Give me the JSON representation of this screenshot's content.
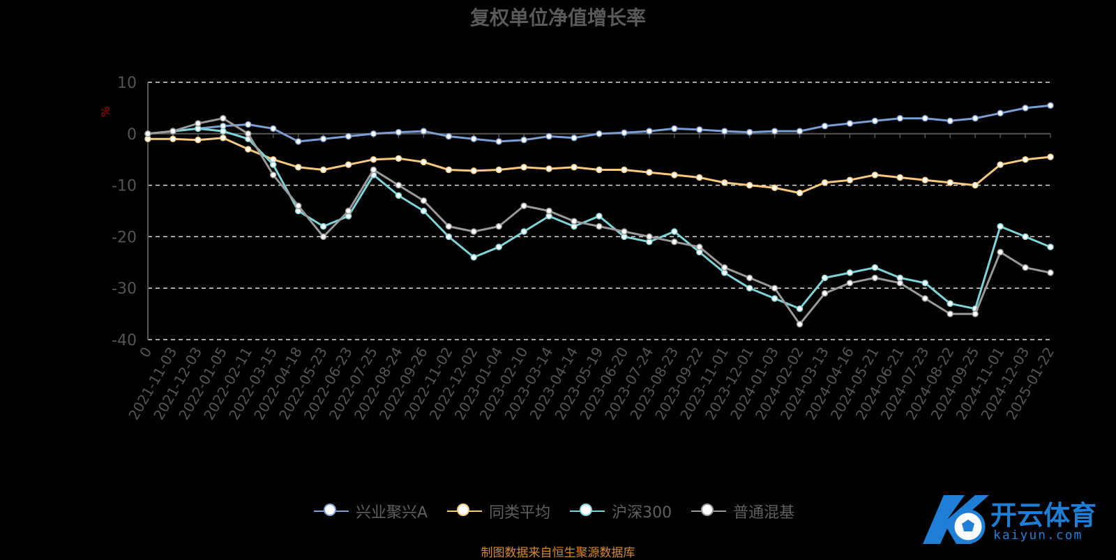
{
  "chart_data": {
    "type": "line",
    "title": "复权单位净值增长率",
    "ylabel": "%",
    "ylim": [
      -40,
      10
    ],
    "yticks": [
      10,
      0,
      -10,
      -20,
      -30,
      -40
    ],
    "x_tick_labels": [
      "0",
      "2021-11-03",
      "2021-12-03",
      "2022-01-05",
      "2022-02-11",
      "2022-03-15",
      "2022-04-18",
      "2022-05-23",
      "2022-06-23",
      "2022-07-25",
      "2022-08-24",
      "2022-09-26",
      "2022-11-02",
      "2022-12-02",
      "2023-01-04",
      "2023-02-10",
      "2023-03-14",
      "2023-04-14",
      "2023-05-19",
      "2023-06-20",
      "2023-07-24",
      "2023-08-23",
      "2023-09-22",
      "2023-11-01",
      "2023-12-01",
      "2024-01-03",
      "2024-02-02",
      "2024-03-13",
      "2024-04-16",
      "2024-05-21",
      "2024-06-21",
      "2024-07-23",
      "2024-08-22",
      "2024-09-25",
      "2024-11-01",
      "2024-12-03",
      "2025-01-22"
    ],
    "grid": "dashed horizontal",
    "legend_position": "bottom",
    "series": [
      {
        "name": "兴业聚兴A",
        "color": "#7b9fd4",
        "values": [
          0,
          0.5,
          1,
          1.5,
          1.8,
          1,
          -1.5,
          -1,
          -0.5,
          0,
          0.3,
          0.5,
          -0.5,
          -1,
          -1.5,
          -1.2,
          -0.5,
          -0.8,
          0,
          0.2,
          0.5,
          1,
          0.8,
          0.5,
          0.3,
          0.5,
          0.5,
          1.5,
          2,
          2.5,
          3,
          3,
          2.5,
          3,
          4,
          5,
          5.5
        ]
      },
      {
        "name": "同类平均",
        "color": "#f6c97e",
        "values": [
          -1,
          -1,
          -1.2,
          -0.8,
          -3,
          -5,
          -6.5,
          -7,
          -6,
          -5,
          -4.8,
          -5.5,
          -7,
          -7.2,
          -7,
          -6.5,
          -6.8,
          -6.5,
          -7,
          -7,
          -7.5,
          -8,
          -8.5,
          -9.5,
          -10,
          -10.5,
          -11.5,
          -9.5,
          -9,
          -8,
          -8.5,
          -9,
          -9.5,
          -10,
          -6,
          -5,
          -4.5
        ]
      },
      {
        "name": "沪深300",
        "color": "#7ed4d8",
        "values": [
          0,
          0.5,
          1,
          0.5,
          -1,
          -6,
          -15,
          -18,
          -16,
          -8,
          -12,
          -15,
          -20,
          -24,
          -22,
          -19,
          -16,
          -18,
          -16,
          -20,
          -21,
          -19,
          -23,
          -27,
          -30,
          -32,
          -34,
          -28,
          -27,
          -26,
          -28,
          -29,
          -33,
          -34,
          -18,
          -20,
          -22
        ]
      },
      {
        "name": "普通混基",
        "color": "#9a9a9a",
        "values": [
          0,
          0.5,
          2,
          3,
          0,
          -8,
          -14,
          -20,
          -15,
          -7,
          -10,
          -13,
          -18,
          -19,
          -18,
          -14,
          -15,
          -17,
          -18,
          -19,
          -20,
          -21,
          -22,
          -26,
          -28,
          -30,
          -37,
          -31,
          -29,
          -28,
          -29,
          -32,
          -35,
          -35,
          -23,
          -26,
          -27
        ]
      }
    ]
  },
  "legend": {
    "items": [
      "兴业聚兴A",
      "同类平均",
      "沪深300",
      "普通混基"
    ]
  },
  "source_note": "制图数据来自恒生聚源数据库",
  "watermark": {
    "brand": "开云体育",
    "domain": "kaiyun.com"
  }
}
